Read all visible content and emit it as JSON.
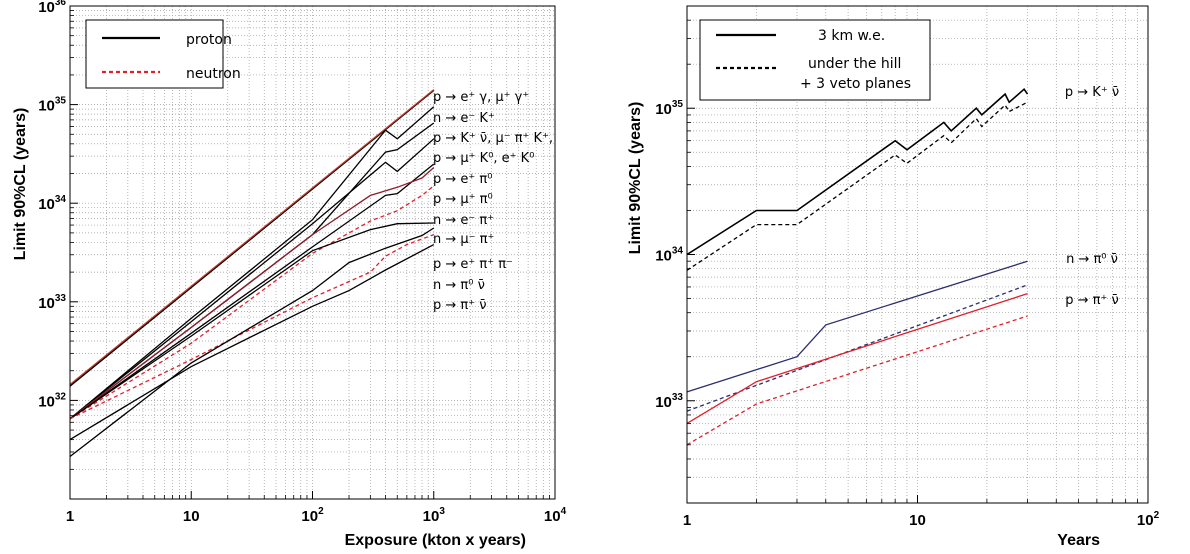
{
  "chart_data": [
    {
      "type": "line",
      "xlabel": "Exposure (kton x years)",
      "ylabel": "Limit 90%CL (years)",
      "xscale": "log",
      "yscale": "log",
      "xlim": [
        1,
        10000
      ],
      "ylim": [
        1e+31,
        1e+36
      ],
      "x_tick_labels": [
        {
          "value": 1,
          "mantissa": "1",
          "exp": ""
        },
        {
          "value": 10,
          "mantissa": "10",
          "exp": ""
        },
        {
          "value": 100,
          "mantissa": "10",
          "exp": "2"
        },
        {
          "value": 1000,
          "mantissa": "10",
          "exp": "3"
        },
        {
          "value": 10000,
          "mantissa": "10",
          "exp": "4"
        }
      ],
      "y_tick_labels": [
        {
          "value": 1e+32,
          "mantissa": "10",
          "exp": "32"
        },
        {
          "value": 1e+33,
          "mantissa": "10",
          "exp": "33"
        },
        {
          "value": 1e+34,
          "mantissa": "10",
          "exp": "34"
        },
        {
          "value": 1e+35,
          "mantissa": "10",
          "exp": "35"
        },
        {
          "value": 1e+36,
          "mantissa": "10",
          "exp": "36"
        }
      ],
      "grid": true,
      "legend": {
        "position": "top-left",
        "entries": [
          {
            "label": "proton",
            "color": "#000000",
            "dash": "solid"
          },
          {
            "label": "neutron",
            "color": "#e0202a",
            "dash": "dashed"
          }
        ]
      },
      "series": [
        {
          "color": "#000000",
          "dash": "solid",
          "points": [
            [
              1,
              1.4e+32
            ],
            [
              1000,
              1.4e+35
            ]
          ]
        },
        {
          "color": "#c0392b",
          "dash": "solid",
          "points": [
            [
              1,
              1.45e+32
            ],
            [
              1000,
              1.42e+35
            ]
          ]
        },
        {
          "color": "#000000",
          "dash": "solid",
          "points": [
            [
              1,
              6.5e+31
            ],
            [
              10,
              4.8e+32
            ],
            [
              100,
              3.6e+33
            ],
            [
              400,
              1.2e+34
            ],
            [
              500,
              1.25e+34
            ],
            [
              1000,
              2.5e+34
            ]
          ]
        },
        {
          "color": "#000000",
          "dash": "solid",
          "points": [
            [
              1,
              6.5e+31
            ],
            [
              10,
              5.5e+32
            ],
            [
              100,
              4.8e+33
            ],
            [
              400,
              3.3e+34
            ],
            [
              500,
              3.5e+34
            ],
            [
              1000,
              6.5e+34
            ]
          ]
        },
        {
          "color": "#000000",
          "dash": "solid",
          "points": [
            [
              1,
              6.5e+31
            ],
            [
              10,
              6.3e+32
            ],
            [
              100,
              6.2e+33
            ],
            [
              400,
              2.6e+34
            ],
            [
              500,
              2.1e+34
            ],
            [
              1000,
              4.5e+34
            ]
          ]
        },
        {
          "color": "#000000",
          "dash": "solid",
          "points": [
            [
              1,
              6.5e+31
            ],
            [
              10,
              6.8e+32
            ],
            [
              100,
              6.8e+33
            ],
            [
              400,
              5.5e+34
            ],
            [
              500,
              4.5e+34
            ],
            [
              1000,
              9.5e+34
            ]
          ]
        },
        {
          "color": "#8e1e2c",
          "dash": "solid",
          "points": [
            [
              1,
              6.5e+31
            ],
            [
              10,
              5.5e+32
            ],
            [
              100,
              4.8e+33
            ],
            [
              300,
              1.2e+34
            ],
            [
              500,
              1.45e+34
            ],
            [
              800,
              1.8e+34
            ],
            [
              1000,
              2.3e+34
            ]
          ]
        },
        {
          "color": "#e0202a",
          "dash": "dashed",
          "points": [
            [
              1,
              6.5e+31
            ],
            [
              10,
              3.8e+32
            ],
            [
              100,
              3.1e+33
            ],
            [
              300,
              6.6e+33
            ],
            [
              500,
              8.4e+33
            ],
            [
              800,
              1.2e+34
            ],
            [
              1000,
              1.5e+34
            ]
          ]
        },
        {
          "color": "#000000",
          "dash": "solid",
          "points": [
            [
              1,
              6.5e+31
            ],
            [
              10,
              4.5e+32
            ],
            [
              100,
              3.3e+33
            ],
            [
              300,
              5.4e+33
            ],
            [
              500,
              6.2e+33
            ],
            [
              1000,
              6.3e+33
            ]
          ]
        },
        {
          "color": "#e0202a",
          "dash": "dashed",
          "points": [
            [
              1,
              6.5e+31
            ],
            [
              10,
              2.6e+32
            ],
            [
              100,
              1.1e+33
            ],
            [
              300,
              2e+33
            ],
            [
              400,
              2.9e+33
            ],
            [
              600,
              3.8e+33
            ],
            [
              1000,
              4.8e+33
            ]
          ]
        },
        {
          "color": "#000000",
          "dash": "solid",
          "points": [
            [
              1,
              2.7e+31
            ],
            [
              10,
              2.4e+32
            ],
            [
              100,
              1.3e+33
            ],
            [
              200,
              2.5e+33
            ],
            [
              400,
              3.5e+33
            ],
            [
              800,
              4.7e+33
            ],
            [
              1000,
              5.6e+33
            ]
          ]
        },
        {
          "color": "#000000",
          "dash": "solid",
          "points": [
            [
              1,
              4e+31
            ],
            [
              10,
              2.2e+32
            ],
            [
              100,
              9e+32
            ],
            [
              200,
              1.3e+33
            ],
            [
              400,
              2.1e+33
            ],
            [
              1000,
              3.8e+33
            ]
          ]
        }
      ],
      "annotations": [
        {
          "text": "p → e⁺ γ,  μ⁺ γ⁺"
        },
        {
          "text": "n → e⁻ K⁺"
        },
        {
          "text": "p → K⁺ ν̄,  μ⁻ π⁺ K⁺,"
        },
        {
          "text": "p → μ⁺ K⁰,  e⁺ K⁰"
        },
        {
          "text": "p → e⁺ π⁰"
        },
        {
          "text": "p → μ⁺ π⁰"
        },
        {
          "text": "n → e⁻ π⁺"
        },
        {
          "text": "n → μ⁻ π⁺"
        },
        {
          "text": "p → e⁺ π⁺ π⁻"
        },
        {
          "text": "n → π⁰ ν̄"
        },
        {
          "text": "p → π⁺ ν̄"
        }
      ]
    },
    {
      "type": "line",
      "xlabel": "Years",
      "ylabel": "Limit 90%CL (years)",
      "xscale": "log",
      "yscale": "log",
      "xlim": [
        1,
        100
      ],
      "ylim": [
        2e+32,
        5e+35
      ],
      "x_tick_labels": [
        {
          "value": 1,
          "mantissa": "1",
          "exp": ""
        },
        {
          "value": 10,
          "mantissa": "10",
          "exp": ""
        },
        {
          "value": 100,
          "mantissa": "10",
          "exp": "2"
        }
      ],
      "y_tick_labels": [
        {
          "value": 1e+33,
          "mantissa": "10",
          "exp": "33"
        },
        {
          "value": 1e+34,
          "mantissa": "10",
          "exp": "34"
        },
        {
          "value": 1e+35,
          "mantissa": "10",
          "exp": "35"
        }
      ],
      "grid": true,
      "legend": {
        "position": "top-left",
        "entries": [
          {
            "label": "3 km w.e.",
            "color": "#000000",
            "dash": "solid"
          },
          {
            "label": "under the hill",
            "label2": "+ 3 veto planes",
            "color": "#000000",
            "dash": "dashed"
          }
        ]
      },
      "series": [
        {
          "color": "#000000",
          "dash": "solid",
          "points": [
            [
              1,
              1e+34
            ],
            [
              2,
              2e+34
            ],
            [
              3,
              2e+34
            ],
            [
              8,
              6e+34
            ],
            [
              9,
              5.2e+34
            ],
            [
              13,
              8e+34
            ],
            [
              14,
              7e+34
            ],
            [
              18,
              1e+35
            ],
            [
              19,
              9e+34
            ],
            [
              24,
              1.25e+35
            ],
            [
              25,
              1.1e+35
            ],
            [
              29,
              1.35e+35
            ],
            [
              30,
              1.25e+35
            ]
          ]
        },
        {
          "color": "#000000",
          "dash": "dashed",
          "points": [
            [
              1,
              7.8e+33
            ],
            [
              2,
              1.6e+34
            ],
            [
              3,
              1.6e+34
            ],
            [
              8,
              4.8e+34
            ],
            [
              9,
              4.2e+34
            ],
            [
              13,
              6.5e+34
            ],
            [
              14,
              5.8e+34
            ],
            [
              18,
              8.5e+34
            ],
            [
              19,
              7.5e+34
            ],
            [
              24,
              1.05e+35
            ],
            [
              25,
              9.5e+34
            ],
            [
              30,
              1.1e+35
            ]
          ]
        },
        {
          "color": "#2b2e6e",
          "dash": "solid",
          "points": [
            [
              1,
              1.15e+33
            ],
            [
              3,
              2e+33
            ],
            [
              4,
              3.3e+33
            ],
            [
              30,
              9e+33
            ]
          ]
        },
        {
          "color": "#2b2e6e",
          "dash": "dashed",
          "points": [
            [
              1,
              8.5e+32
            ],
            [
              30,
              6.2e+33
            ]
          ]
        },
        {
          "color": "#e0202a",
          "dash": "solid",
          "points": [
            [
              1,
              7e+32
            ],
            [
              2,
              1.35e+33
            ],
            [
              30,
              5.4e+33
            ]
          ]
        },
        {
          "color": "#e0202a",
          "dash": "dashed",
          "points": [
            [
              1,
              5e+32
            ],
            [
              2,
              9.5e+32
            ],
            [
              30,
              3.8e+33
            ]
          ]
        }
      ],
      "annotations": [
        {
          "text": "p → K⁺ ν̄"
        },
        {
          "text": "n → π⁰ ν̄"
        },
        {
          "text": "p → π⁺ ν̄"
        }
      ]
    }
  ]
}
